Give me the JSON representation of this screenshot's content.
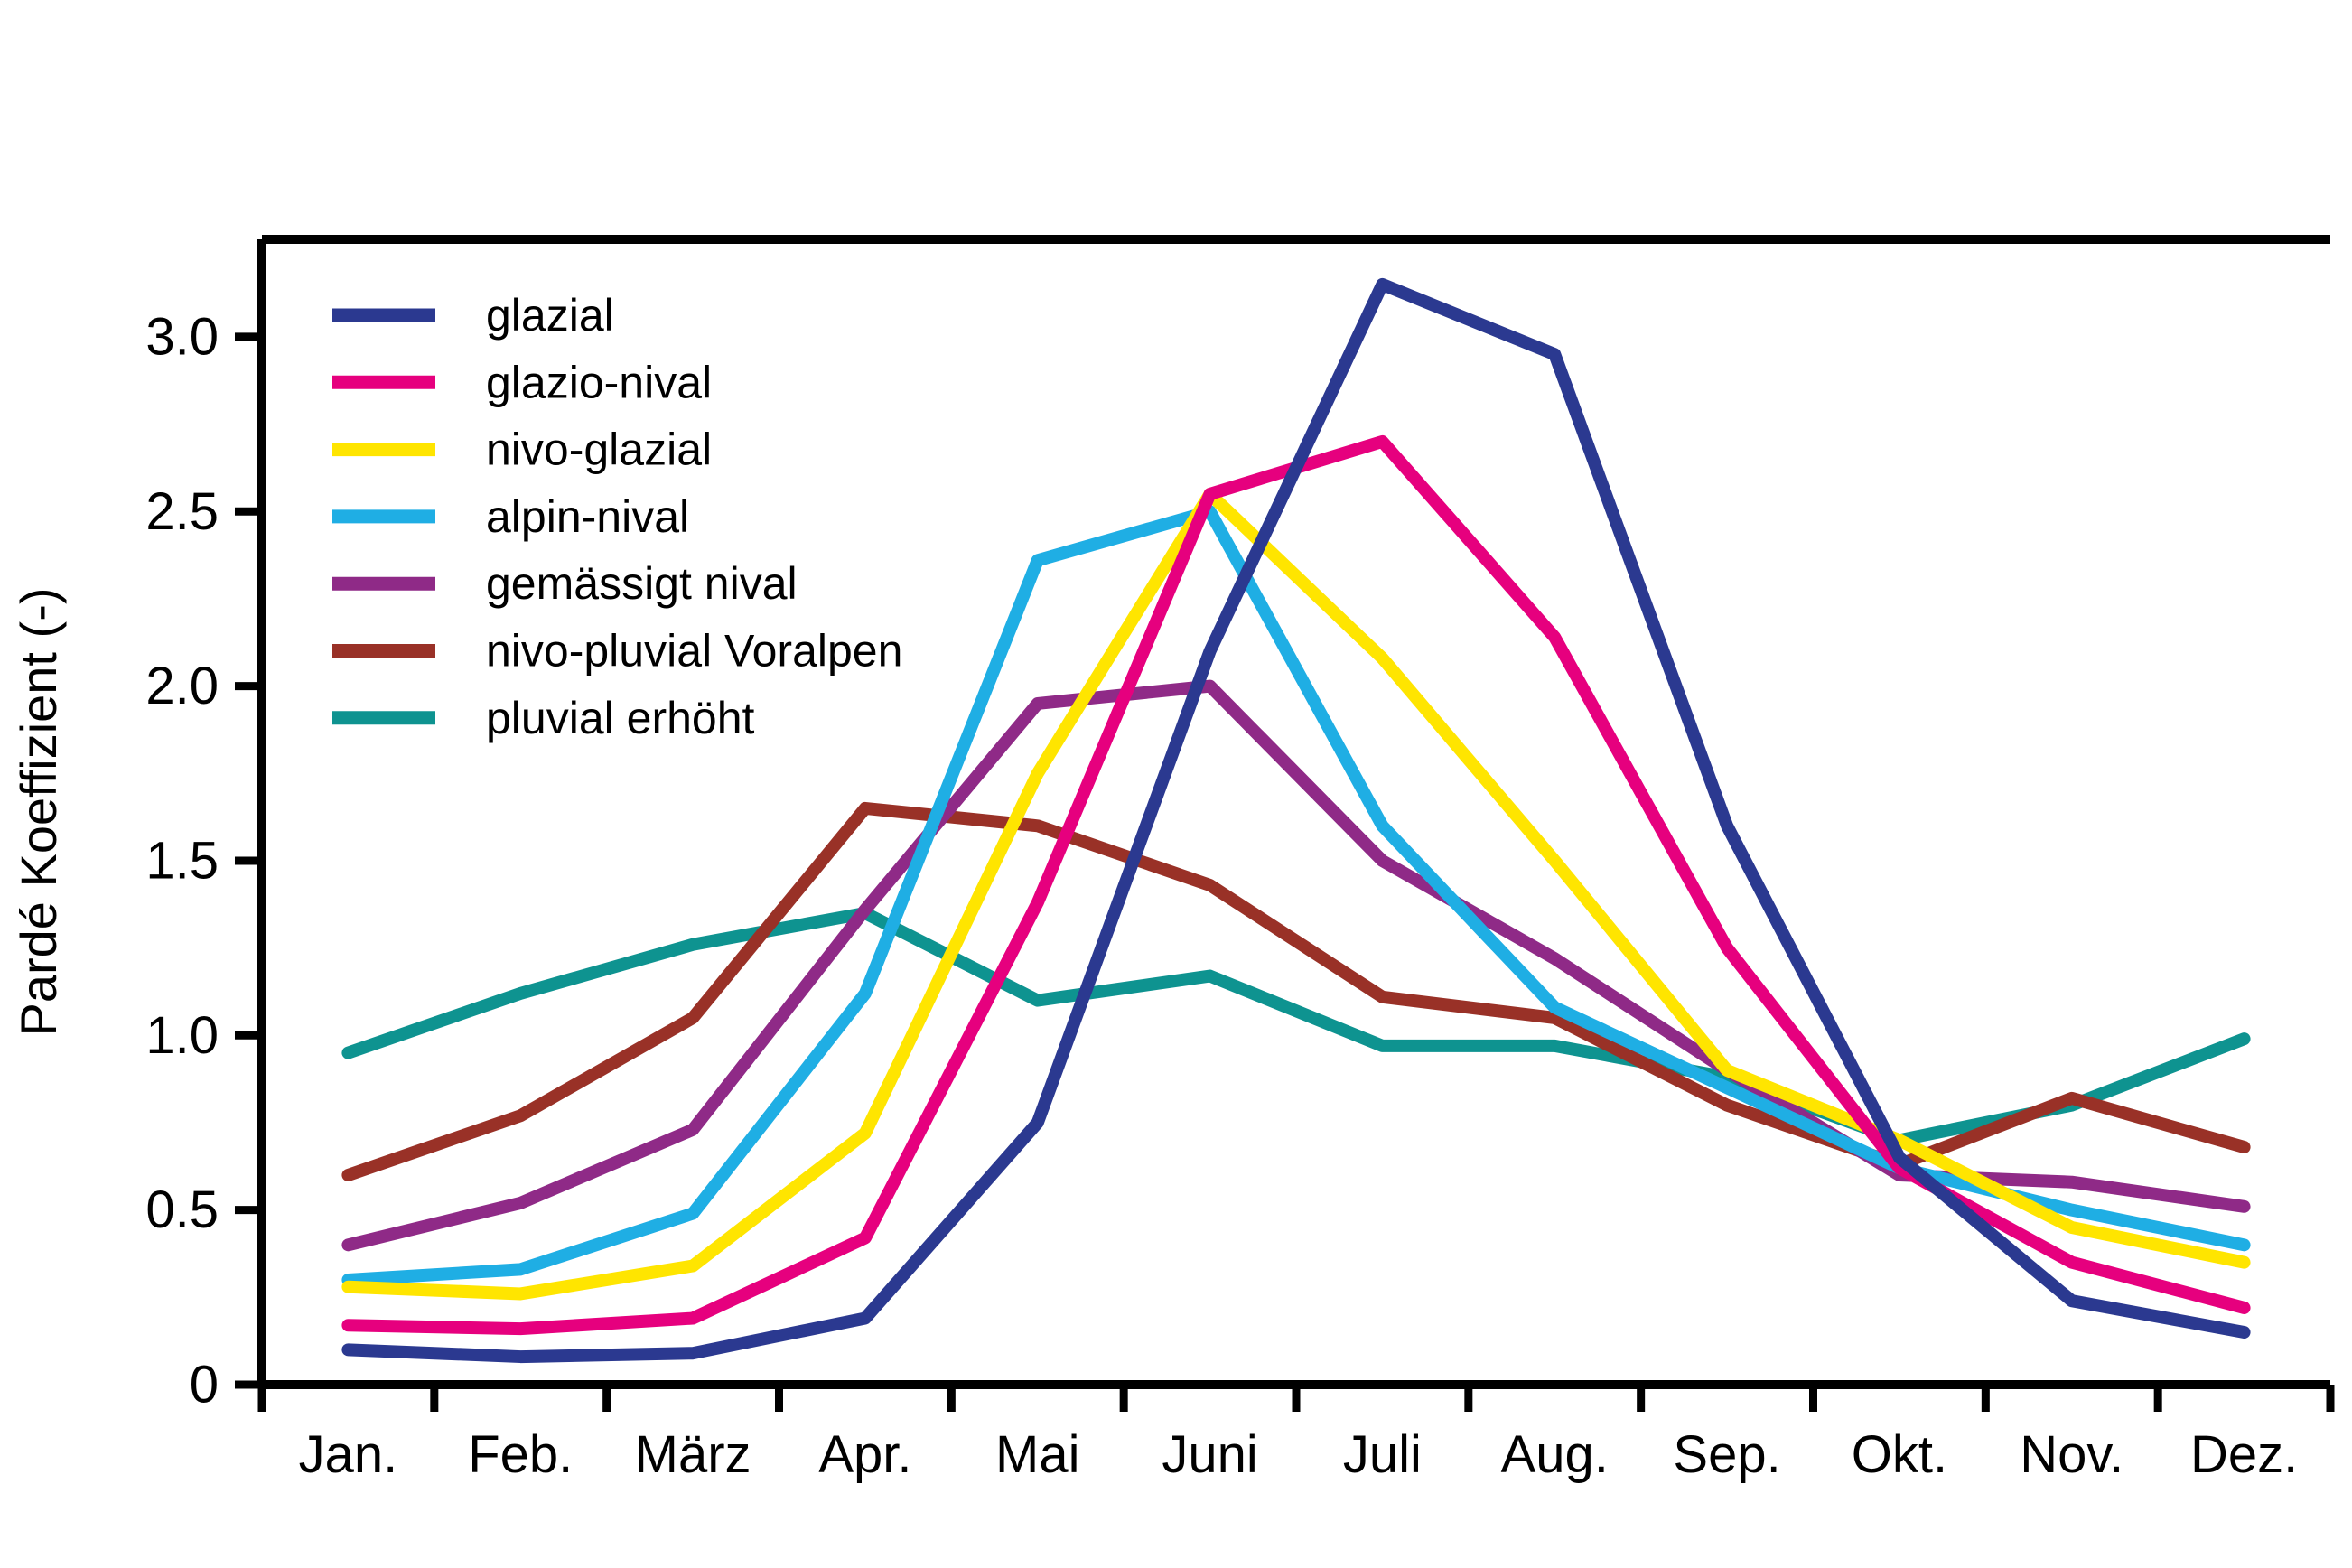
{
  "figure": {
    "background": "#ffffff",
    "text_color": "#000000",
    "axis_color": "#000000"
  },
  "chart_data": {
    "type": "line",
    "title": "",
    "xlabel": "",
    "ylabel": "Pardé Koeffizient (-)",
    "ylim": [
      0,
      3.28
    ],
    "grid": false,
    "legend_position": "top-left",
    "yticks": [
      {
        "value": 0,
        "label": "0"
      },
      {
        "value": 0.5,
        "label": "0.5"
      },
      {
        "value": 1.0,
        "label": "1.0"
      },
      {
        "value": 1.5,
        "label": "1.5"
      },
      {
        "value": 2.0,
        "label": "2.0"
      },
      {
        "value": 2.5,
        "label": "2.5"
      },
      {
        "value": 3.0,
        "label": "3.0"
      }
    ],
    "categories": [
      "Jan.",
      "Feb.",
      "März",
      "Apr.",
      "Mai",
      "Juni",
      "Juli",
      "Aug.",
      "Sep.",
      "Okt.",
      "Nov.",
      "Dez."
    ],
    "series": [
      {
        "name": "glazial",
        "color": "#2B3990",
        "values": [
          0.1,
          0.08,
          0.09,
          0.19,
          0.75,
          2.1,
          3.15,
          2.95,
          1.6,
          0.65,
          0.24,
          0.15
        ]
      },
      {
        "name": "glazio-nival",
        "color": "#E6007E",
        "values": [
          0.17,
          0.16,
          0.19,
          0.42,
          1.38,
          2.55,
          2.7,
          2.14,
          1.25,
          0.62,
          0.35,
          0.22
        ]
      },
      {
        "name": "nivo-glazial",
        "color": "#FFE500",
        "values": [
          0.28,
          0.26,
          0.34,
          0.72,
          1.75,
          2.55,
          2.08,
          1.5,
          0.9,
          0.7,
          0.45,
          0.35
        ]
      },
      {
        "name": "alpin-nival",
        "color": "#1FAEE4",
        "values": [
          0.3,
          0.33,
          0.49,
          1.12,
          2.36,
          2.5,
          1.6,
          1.08,
          0.85,
          0.62,
          0.5,
          0.4
        ]
      },
      {
        "name": "gemässigt nival",
        "color": "#8F2A87",
        "values": [
          0.4,
          0.52,
          0.73,
          1.36,
          1.95,
          2.0,
          1.5,
          1.22,
          0.9,
          0.6,
          0.58,
          0.51
        ]
      },
      {
        "name": "nivo-pluvial Voralpen",
        "color": "#993127",
        "values": [
          0.6,
          0.77,
          1.05,
          1.65,
          1.6,
          1.43,
          1.11,
          1.05,
          0.8,
          0.63,
          0.82,
          0.68
        ]
      },
      {
        "name": "pluvial erhöht",
        "color": "#0E9390",
        "values": [
          0.95,
          1.12,
          1.26,
          1.35,
          1.1,
          1.17,
          0.97,
          0.97,
          0.88,
          0.7,
          0.8,
          0.99
        ]
      }
    ]
  }
}
